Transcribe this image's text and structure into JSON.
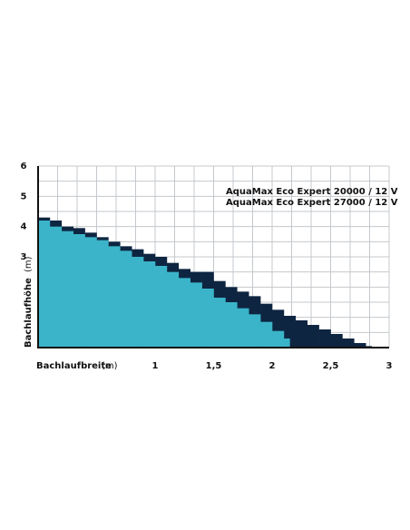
{
  "chart_data": {
    "type": "step-area",
    "x_label": "Bachlaufbreite",
    "x_unit": "(m)",
    "y_label": "Bachlaufhöhe",
    "y_unit": "(m)",
    "xlim": [
      0,
      3
    ],
    "ylim": [
      0,
      6
    ],
    "xticks": [
      1,
      {
        "value": 1.5,
        "label": "1,5"
      },
      2,
      {
        "value": 2.5,
        "label": "2,5"
      },
      3
    ],
    "yticks": [
      3,
      4,
      5,
      6
    ],
    "grid_divisions": {
      "x": 18,
      "y": 12
    },
    "series": [
      {
        "name": "AquaMax Eco Expert 27000 / 12 V",
        "color": "#0e2541",
        "x": [
          0,
          0.1,
          0.2,
          0.3,
          0.4,
          0.5,
          0.6,
          0.7,
          0.8,
          0.9,
          1.0,
          1.1,
          1.2,
          1.3,
          1.4,
          1.5,
          1.6,
          1.7,
          1.8,
          1.9,
          2.0,
          2.1,
          2.2,
          2.3,
          2.4,
          2.5,
          2.6,
          2.7,
          2.8,
          2.85
        ],
        "values": [
          4.3,
          4.2,
          4.0,
          3.95,
          3.8,
          3.65,
          3.5,
          3.35,
          3.25,
          3.1,
          3.0,
          2.8,
          2.6,
          2.5,
          2.5,
          2.2,
          2.0,
          1.85,
          1.7,
          1.45,
          1.25,
          1.05,
          0.9,
          0.75,
          0.6,
          0.45,
          0.3,
          0.15,
          0.05,
          0
        ]
      },
      {
        "name": "AquaMax Eco Expert 20000 / 12 V",
        "color": "#3bb4c9",
        "x": [
          0,
          0.1,
          0.2,
          0.3,
          0.4,
          0.5,
          0.6,
          0.7,
          0.8,
          0.9,
          1.0,
          1.1,
          1.2,
          1.3,
          1.4,
          1.5,
          1.6,
          1.7,
          1.8,
          1.9,
          2.0,
          2.1,
          2.15
        ],
        "values": [
          4.2,
          4.0,
          3.85,
          3.75,
          3.65,
          3.55,
          3.35,
          3.2,
          3.0,
          2.85,
          2.7,
          2.5,
          2.3,
          2.15,
          1.95,
          1.65,
          1.5,
          1.3,
          1.1,
          0.85,
          0.55,
          0.3,
          0
        ]
      }
    ]
  }
}
